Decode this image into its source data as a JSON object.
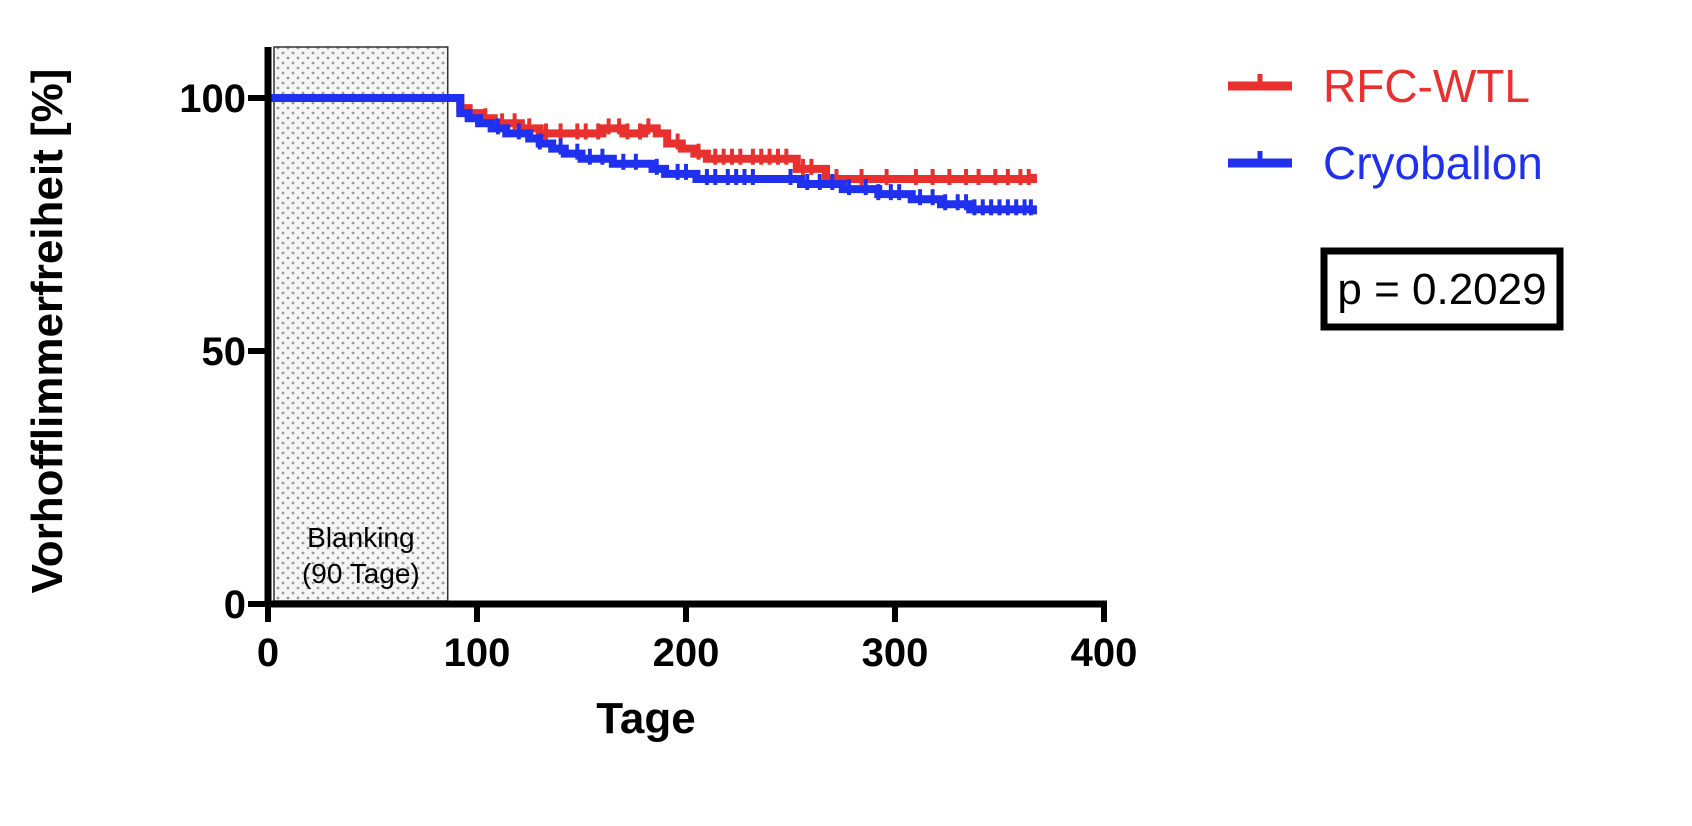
{
  "chart_data": {
    "type": "line",
    "subtype": "kaplan-meier step curve",
    "xlabel": "Tage",
    "ylabel": "Vorhofflimmerfreiheit [%]",
    "xlim": [
      0,
      400
    ],
    "ylim": [
      0,
      100
    ],
    "x_ticks": [
      "0",
      "100",
      "200",
      "300",
      "400"
    ],
    "y_ticks": [
      "0",
      "50",
      "100"
    ],
    "grid": false,
    "legend_position": "top-right, outside plot",
    "shaded_region": {
      "x_range": [
        0,
        86
      ],
      "label_line1": "Blanking",
      "label_line2": "(90 Tage)",
      "pattern": "dotted grey"
    },
    "annotation": "p = 0.2029",
    "series": [
      {
        "name": "RFC-WTL",
        "color": "#e8312e",
        "points": [
          [
            0,
            100
          ],
          [
            89,
            100
          ],
          [
            92,
            98
          ],
          [
            96,
            97
          ],
          [
            102,
            96
          ],
          [
            108,
            95
          ],
          [
            115,
            95
          ],
          [
            121,
            94
          ],
          [
            130,
            93
          ],
          [
            140,
            93
          ],
          [
            150,
            93
          ],
          [
            160,
            94
          ],
          [
            170,
            93
          ],
          [
            180,
            94
          ],
          [
            186,
            93
          ],
          [
            191,
            91
          ],
          [
            198,
            90
          ],
          [
            204,
            89
          ],
          [
            210,
            88
          ],
          [
            230,
            88
          ],
          [
            245,
            88
          ],
          [
            253,
            86
          ],
          [
            263,
            86
          ],
          [
            267,
            84
          ],
          [
            280,
            84
          ],
          [
            300,
            84
          ],
          [
            330,
            84
          ],
          [
            366,
            85
          ]
        ],
        "censor_marks_x": [
          104,
          112,
          118,
          125,
          133,
          140,
          148,
          152,
          158,
          163,
          168,
          172,
          178,
          182,
          196,
          206,
          214,
          218,
          222,
          226,
          232,
          236,
          240,
          244,
          248,
          256,
          260,
          272,
          284,
          296,
          310,
          318,
          326,
          334,
          340,
          348,
          354,
          360,
          364
        ]
      },
      {
        "name": "Cryoballon",
        "color": "#1f31ee",
        "points": [
          [
            0,
            100
          ],
          [
            89,
            100
          ],
          [
            92,
            97
          ],
          [
            96,
            96
          ],
          [
            101,
            95
          ],
          [
            107,
            94
          ],
          [
            114,
            93
          ],
          [
            120,
            93
          ],
          [
            125,
            92
          ],
          [
            130,
            91
          ],
          [
            136,
            90
          ],
          [
            142,
            89
          ],
          [
            150,
            88
          ],
          [
            158,
            88
          ],
          [
            165,
            87
          ],
          [
            175,
            87
          ],
          [
            184,
            86
          ],
          [
            190,
            85
          ],
          [
            198,
            85
          ],
          [
            205,
            84
          ],
          [
            215,
            84
          ],
          [
            225,
            84
          ],
          [
            235,
            84
          ],
          [
            245,
            84
          ],
          [
            255,
            83
          ],
          [
            265,
            83
          ],
          [
            275,
            82
          ],
          [
            285,
            82
          ],
          [
            292,
            81
          ],
          [
            300,
            81
          ],
          [
            308,
            80
          ],
          [
            316,
            80
          ],
          [
            322,
            79
          ],
          [
            330,
            79
          ],
          [
            336,
            78
          ],
          [
            345,
            78
          ],
          [
            355,
            78
          ],
          [
            366,
            77
          ]
        ],
        "censor_marks_x": [
          110,
          120,
          130,
          140,
          148,
          154,
          160,
          170,
          176,
          186,
          196,
          200,
          210,
          214,
          220,
          224,
          228,
          232,
          250,
          258,
          264,
          270,
          278,
          286,
          292,
          298,
          302,
          312,
          318,
          324,
          330,
          334,
          338,
          342,
          346,
          350,
          354,
          358,
          362,
          365
        ]
      }
    ]
  }
}
